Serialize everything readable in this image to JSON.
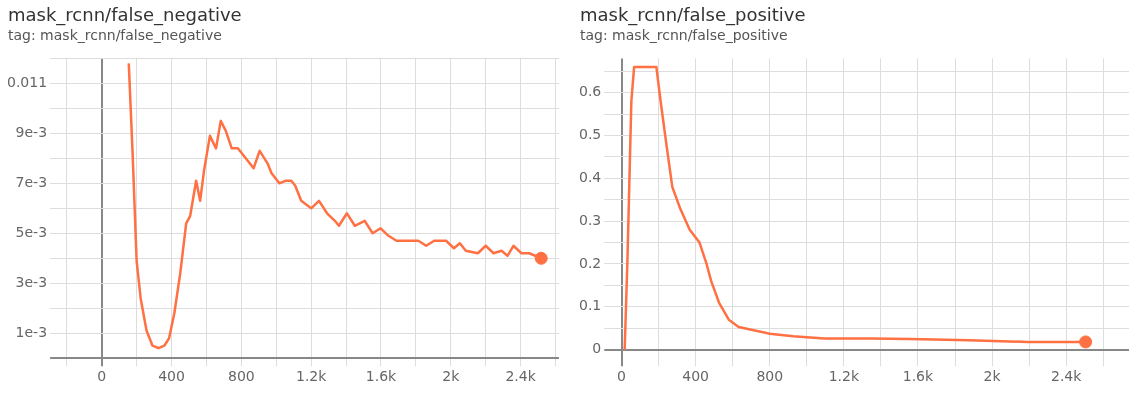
{
  "chart_data": [
    {
      "type": "line",
      "title": "mask_rcnn/false_negative",
      "subtitle": "tag: mask_rcnn/false_negative",
      "grid": true,
      "xlim": [
        -250,
        2620
      ],
      "xticks": [
        {
          "value": -200,
          "label": null
        },
        0,
        {
          "value": 200,
          "label": null
        },
        400,
        {
          "value": 600,
          "label": null
        },
        800,
        {
          "value": 1000,
          "label": null
        },
        {
          "value": 1200,
          "label": "1.2k"
        },
        {
          "value": 1400,
          "label": null
        },
        {
          "value": 1600,
          "label": "1.6k"
        },
        {
          "value": 1800,
          "label": null
        },
        {
          "value": 2000,
          "label": "2k"
        },
        {
          "value": 2200,
          "label": null
        },
        {
          "value": 2400,
          "label": "2.4k"
        },
        {
          "value": 2600,
          "label": null
        }
      ],
      "ylim": [
        0,
        0.012
      ],
      "yticks": [
        {
          "value": 0,
          "label": null
        },
        {
          "value": 0.001,
          "label": "1e-3"
        },
        {
          "value": 0.002,
          "label": null
        },
        {
          "value": 0.003,
          "label": "3e-3"
        },
        {
          "value": 0.004,
          "label": null
        },
        {
          "value": 0.005,
          "label": "5e-3"
        },
        {
          "value": 0.006,
          "label": null
        },
        {
          "value": 0.007,
          "label": "7e-3"
        },
        {
          "value": 0.008,
          "label": null
        },
        {
          "value": 0.009,
          "label": "9e-3"
        },
        {
          "value": 0.01,
          "label": null
        },
        0.011,
        {
          "value": 0.012,
          "label": null
        }
      ],
      "series": [
        {
          "type": "line",
          "color": "#ff7043",
          "marker": "none",
          "x": [
            155,
            177,
            200,
            223,
            257,
            291,
            325,
            359,
            386,
            416,
            450,
            484,
            507,
            541,
            564,
            586,
            620,
            655,
            682,
            711,
            745,
            780,
            814,
            848,
            870,
            905,
            950,
            973,
            1018,
            1052,
            1086,
            1109,
            1143,
            1200,
            1245,
            1291,
            1336,
            1359,
            1405,
            1450,
            1507,
            1552,
            1598,
            1643,
            1689,
            1757,
            1814,
            1859,
            1905,
            1973,
            2018,
            2052,
            2086,
            2155,
            2200,
            2245,
            2291,
            2325,
            2359,
            2405,
            2450,
            2518
          ],
          "values": [
            0.0118,
            0.0082,
            0.0039,
            0.0024,
            0.0011,
            0.0005,
            0.0004,
            0.0005,
            0.0008,
            0.0018,
            0.0034,
            0.0054,
            0.0057,
            0.0071,
            0.0063,
            0.0075,
            0.0089,
            0.0084,
            0.0095,
            0.0091,
            0.0084,
            0.0084,
            0.0081,
            0.0078,
            0.0076,
            0.0083,
            0.0078,
            0.0074,
            0.007,
            0.0071,
            0.0071,
            0.0069,
            0.0063,
            0.006,
            0.0063,
            0.0058,
            0.0055,
            0.0053,
            0.0058,
            0.0053,
            0.0055,
            0.005,
            0.0052,
            0.0049,
            0.0047,
            0.0047,
            0.0047,
            0.0045,
            0.0047,
            0.0047,
            0.0044,
            0.0046,
            0.0043,
            0.0042,
            0.0045,
            0.0042,
            0.0043,
            0.0041,
            0.0045,
            0.0042,
            0.0042,
            0.004
          ]
        },
        {
          "type": "scatter",
          "color": "#ff7043",
          "marker": "circle",
          "x": [
            2518
          ],
          "values": [
            0.004
          ]
        }
      ]
    },
    {
      "type": "line",
      "title": "mask_rcnn/false_positive",
      "subtitle": "tag: mask_rcnn/false_positive",
      "grid": true,
      "xlim": [
        -50,
        2750
      ],
      "xticks": [
        0,
        {
          "value": 200,
          "label": null
        },
        400,
        {
          "value": 600,
          "label": null
        },
        800,
        {
          "value": 1000,
          "label": null
        },
        {
          "value": 1200,
          "label": "1.2k"
        },
        {
          "value": 1400,
          "label": null
        },
        {
          "value": 1600,
          "label": "1.6k"
        },
        {
          "value": 1800,
          "label": null
        },
        {
          "value": 2000,
          "label": "2k"
        },
        {
          "value": 2200,
          "label": null
        },
        {
          "value": 2400,
          "label": "2.4k"
        },
        {
          "value": 2600,
          "label": null
        }
      ],
      "ylim": [
        -0.02,
        0.68
      ],
      "yticks": [
        0,
        {
          "value": 0.05,
          "label": null
        },
        0.1,
        {
          "value": 0.15,
          "label": null
        },
        0.2,
        {
          "value": 0.25,
          "label": null
        },
        0.3,
        {
          "value": 0.35,
          "label": null
        },
        0.4,
        {
          "value": 0.45,
          "label": null
        },
        0.5,
        {
          "value": 0.55,
          "label": null
        },
        0.6,
        {
          "value": 0.65,
          "label": null
        }
      ],
      "series": [
        {
          "type": "line",
          "color": "#ff7043",
          "marker": "none",
          "x": [
            17,
            32,
            53,
            68,
            188,
            211,
            242,
            274,
            316,
            368,
            421,
            459,
            484,
            526,
            579,
            632,
            695,
            800,
            926,
            1095,
            1347,
            1558,
            1874,
            2189,
            2505
          ],
          "values": [
            0,
            0.21,
            0.58,
            0.66,
            0.66,
            0.58,
            0.48,
            0.38,
            0.33,
            0.28,
            0.25,
            0.2,
            0.16,
            0.11,
            0.07,
            0.053,
            0.047,
            0.037,
            0.031,
            0.026,
            0.026,
            0.025,
            0.022,
            0.018,
            0.018
          ]
        },
        {
          "type": "scatter",
          "color": "#ff7043",
          "marker": "circle",
          "x": [
            2505
          ],
          "values": [
            0.018
          ]
        }
      ]
    }
  ]
}
